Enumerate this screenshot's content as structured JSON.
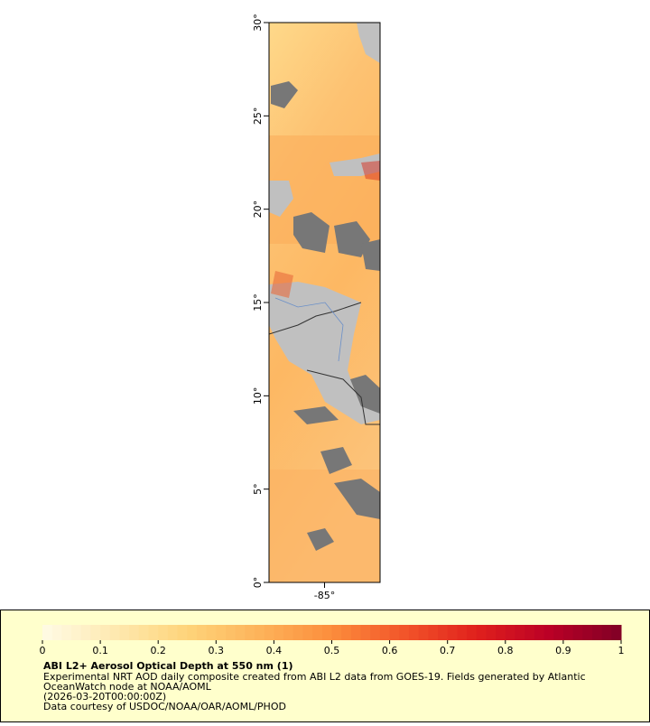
{
  "map": {
    "xlim": [
      -88,
      -82
    ],
    "ylim": [
      0,
      30
    ],
    "xticks": [
      {
        "value": -85,
        "label": "-85°"
      }
    ],
    "yticks": [
      {
        "value": 0,
        "label": "0°"
      },
      {
        "value": 5,
        "label": "5°"
      },
      {
        "value": 10,
        "label": "10°"
      },
      {
        "value": 15,
        "label": "15°"
      },
      {
        "value": 20,
        "label": "20°"
      },
      {
        "value": 25,
        "label": "25°"
      },
      {
        "value": 30,
        "label": "30°"
      }
    ]
  },
  "colorbar": {
    "range": [
      0,
      1
    ],
    "ticks": [
      0,
      0.1,
      0.2,
      0.3,
      0.4,
      0.5,
      0.6,
      0.7,
      0.8,
      0.9,
      1
    ],
    "colors": [
      "#fffbe6",
      "#fee9b0",
      "#fed47a",
      "#fdb35a",
      "#fc8d3c",
      "#f2552a",
      "#e0201c",
      "#bb0026",
      "#800026"
    ]
  },
  "caption": {
    "title": "ABI L2+ Aerosol Optical Depth at 550 nm (1)",
    "lines": [
      "Experimental NRT AOD daily composite created from ABI L2 data from GOES-19. Fields generated by Atlantic",
      "OceanWatch node at NOAA/AOML",
      "(2026-03-20T00:00:00Z)",
      "Data courtesy of USDOC/NOAA/OAR/AOML/PHOD"
    ]
  }
}
